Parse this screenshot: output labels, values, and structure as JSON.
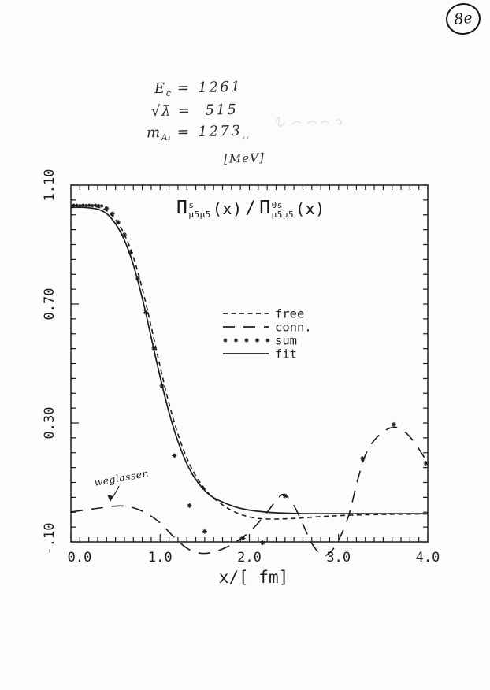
{
  "page": {
    "stamp": "8e",
    "notes": {
      "line1": {
        "sym": "E",
        "sub": "c",
        "eq": "=",
        "val": "1261"
      },
      "line2": {
        "sym": "√λ̄",
        "eq": "=",
        "val": "515"
      },
      "line3": {
        "sym": "m",
        "sub": "A₁",
        "eq": "=",
        "val": "1273",
        "suffix": "‚‚"
      },
      "units": "[MeV]",
      "weglassen": "weglassen"
    },
    "title_parts": {
      "pi": "Π",
      "sup_s": "s",
      "sup_0s": "0s",
      "sub": "μ5μ5",
      "arg": "(x)",
      "slash": "/"
    }
  },
  "chart_data": {
    "type": "line",
    "title": "Π^s_{μ5μ5}(x) / Π^{0s}_{μ5μ5}(x)",
    "xlabel": "x/[ fm]",
    "ylabel": "",
    "xlim": [
      0.0,
      4.0
    ],
    "ylim": [
      -0.1,
      1.1
    ],
    "x_tick_labels": [
      "0.0",
      "1.0",
      "2.0",
      "3.0",
      "4.0"
    ],
    "x_tick_values": [
      0.0,
      1.0,
      2.0,
      3.0,
      4.0
    ],
    "y_tick_labels": [
      "1.10",
      "0.70",
      "0.30",
      "-.10"
    ],
    "y_tick_values": [
      1.1,
      0.7,
      0.3,
      -0.1
    ],
    "x_minor_step": 0.1,
    "y_minor_step": 0.05,
    "grid": false,
    "legend_position": "inside center-right",
    "legend": [
      {
        "label": "free",
        "style": "short-dash"
      },
      {
        "label": "conn.",
        "style": "long-dash"
      },
      {
        "label": "sum",
        "style": "dots"
      },
      {
        "label": "fit",
        "style": "solid"
      }
    ],
    "series": [
      {
        "name": "free",
        "style": "short-dash",
        "points": [
          [
            0,
            1.031
          ],
          [
            0.15,
            1.031
          ],
          [
            0.3,
            1.026
          ],
          [
            0.4,
            1.014
          ],
          [
            0.5,
            0.984
          ],
          [
            0.6,
            0.934
          ],
          [
            0.7,
            0.858
          ],
          [
            0.8,
            0.752
          ],
          [
            0.9,
            0.624
          ],
          [
            1.0,
            0.49
          ],
          [
            1.1,
            0.365
          ],
          [
            1.2,
            0.262
          ],
          [
            1.3,
            0.182
          ],
          [
            1.4,
            0.122
          ],
          [
            1.5,
            0.079
          ],
          [
            1.6,
            0.047
          ],
          [
            1.8,
            0.006
          ],
          [
            2.0,
            -0.016
          ],
          [
            2.2,
            -0.023
          ],
          [
            2.5,
            -0.021
          ],
          [
            2.9,
            -0.013
          ],
          [
            3.4,
            -0.008
          ],
          [
            4.0,
            -0.006
          ]
        ]
      },
      {
        "name": "conn.",
        "style": "long-dash",
        "points": [
          [
            0,
            0.001
          ],
          [
            0.2,
            0.009
          ],
          [
            0.4,
            0.017
          ],
          [
            0.55,
            0.021
          ],
          [
            0.7,
            0.015
          ],
          [
            0.85,
            -0.004
          ],
          [
            1.0,
            -0.036
          ],
          [
            1.15,
            -0.082
          ],
          [
            1.3,
            -0.121
          ],
          [
            1.45,
            -0.138
          ],
          [
            1.6,
            -0.134
          ],
          [
            1.75,
            -0.117
          ],
          [
            1.9,
            -0.09
          ],
          [
            2.05,
            -0.052
          ],
          [
            2.2,
            0.0
          ],
          [
            2.33,
            0.05
          ],
          [
            2.4,
            0.058
          ],
          [
            2.5,
            0.022
          ],
          [
            2.6,
            -0.04
          ],
          [
            2.7,
            -0.105
          ],
          [
            2.82,
            -0.145
          ],
          [
            2.92,
            -0.131
          ],
          [
            3.02,
            -0.082
          ],
          [
            3.12,
            -0.005
          ],
          [
            3.22,
            0.115
          ],
          [
            3.32,
            0.205
          ],
          [
            3.45,
            0.258
          ],
          [
            3.6,
            0.285
          ],
          [
            3.72,
            0.275
          ],
          [
            3.85,
            0.235
          ],
          [
            4.0,
            0.165
          ]
        ]
      },
      {
        "name": "sum",
        "style": "dots",
        "points": [
          [
            0.03,
            1.032
          ],
          [
            0.065,
            1.032
          ],
          [
            0.1,
            1.031
          ],
          [
            0.135,
            1.032
          ],
          [
            0.17,
            1.031
          ],
          [
            0.205,
            1.032
          ],
          [
            0.24,
            1.031
          ],
          [
            0.275,
            1.032
          ],
          [
            0.31,
            1.031
          ],
          [
            0.345,
            1.03
          ],
          [
            0.4,
            1.021
          ],
          [
            0.465,
            1.003
          ],
          [
            0.53,
            0.975
          ],
          [
            0.6,
            0.933
          ],
          [
            0.67,
            0.873
          ],
          [
            0.75,
            0.785
          ],
          [
            0.84,
            0.672
          ],
          [
            0.93,
            0.552
          ],
          [
            1.02,
            0.425
          ],
          [
            1.16,
            0.19
          ],
          [
            1.33,
            0.022
          ],
          [
            1.5,
            -0.065
          ],
          [
            1.93,
            -0.088
          ],
          [
            2.15,
            -0.103
          ],
          [
            2.4,
            0.055
          ],
          [
            3.27,
            0.18
          ],
          [
            3.62,
            0.295
          ],
          [
            3.98,
            0.165
          ]
        ]
      },
      {
        "name": "fit",
        "style": "solid",
        "points": [
          [
            0,
            1.025
          ],
          [
            0.15,
            1.025
          ],
          [
            0.3,
            1.019
          ],
          [
            0.4,
            1.004
          ],
          [
            0.5,
            0.97
          ],
          [
            0.6,
            0.915
          ],
          [
            0.7,
            0.832
          ],
          [
            0.8,
            0.72
          ],
          [
            0.9,
            0.588
          ],
          [
            1.0,
            0.455
          ],
          [
            1.1,
            0.335
          ],
          [
            1.2,
            0.238
          ],
          [
            1.3,
            0.163
          ],
          [
            1.4,
            0.11
          ],
          [
            1.5,
            0.073
          ],
          [
            1.6,
            0.049
          ],
          [
            1.8,
            0.022
          ],
          [
            2.0,
            0.007
          ],
          [
            2.3,
            -0.002
          ],
          [
            2.7,
            -0.005
          ],
          [
            3.3,
            -0.005
          ],
          [
            4.0,
            -0.005
          ]
        ]
      }
    ],
    "annotations": [
      {
        "text": "weglassen",
        "target_x": 0.45,
        "target_y": 0.02,
        "note": "arrow points at conn. curve bump"
      }
    ]
  }
}
